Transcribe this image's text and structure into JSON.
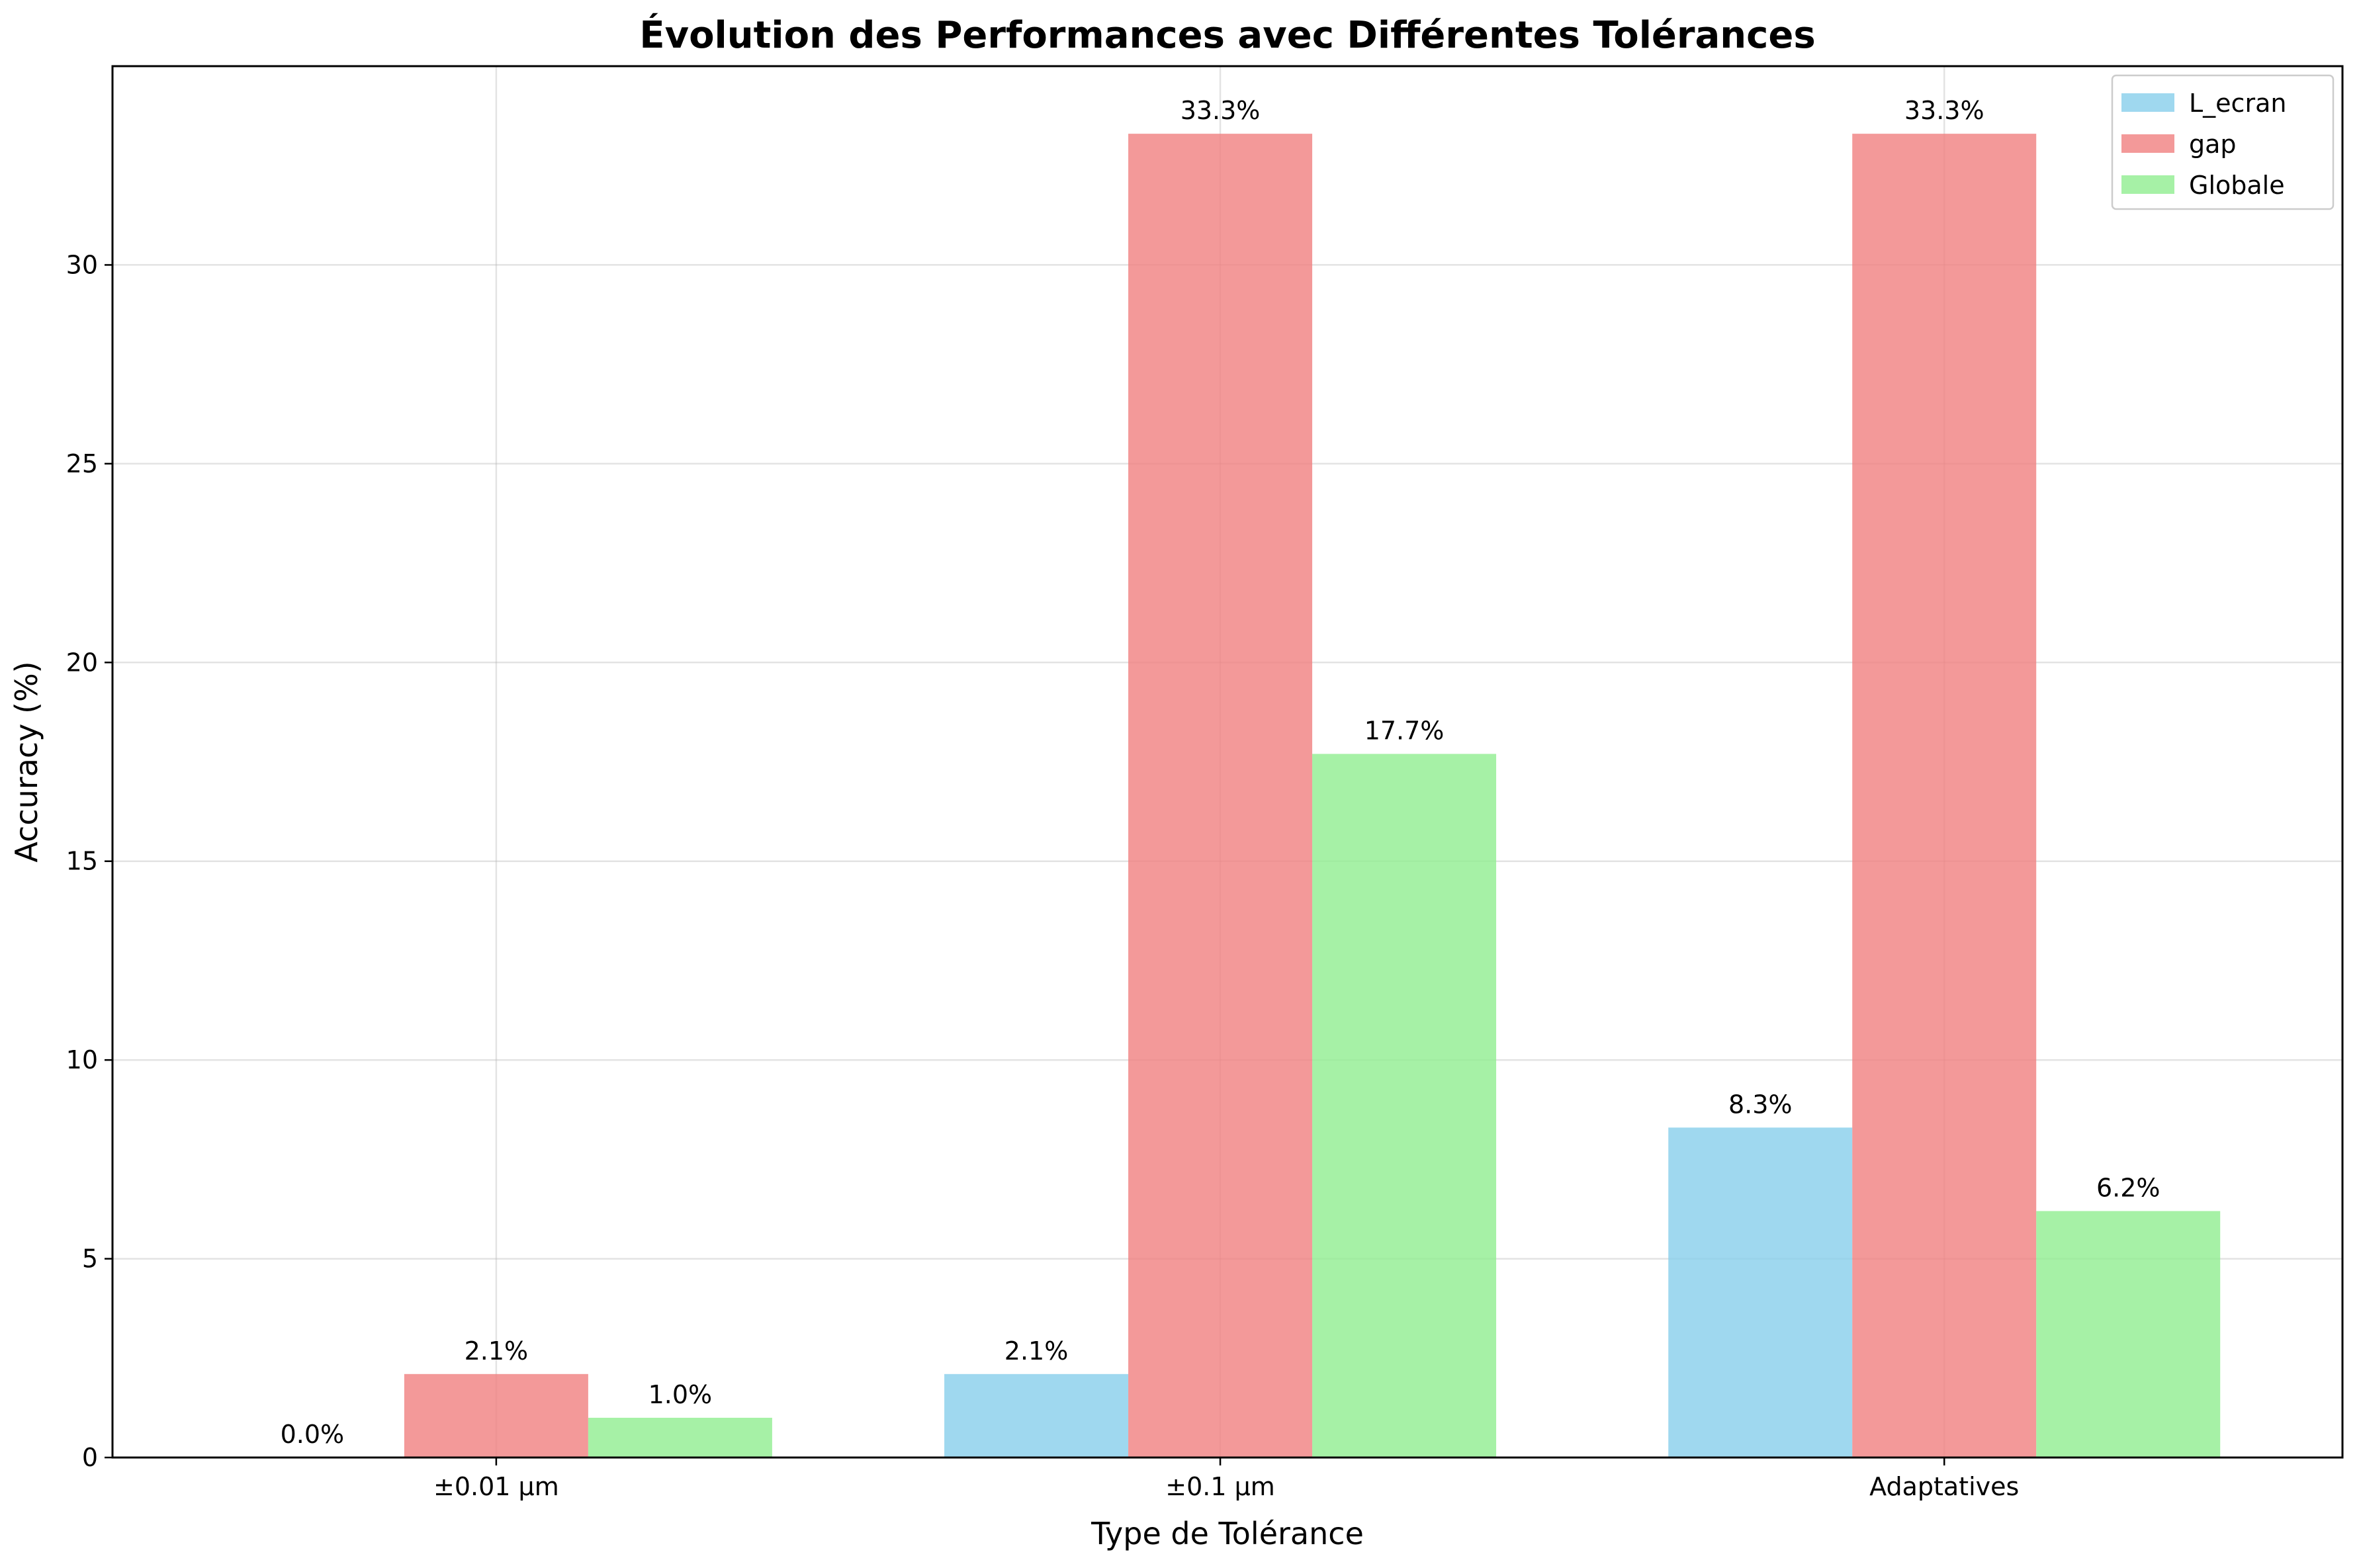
{
  "chart_data": {
    "type": "bar",
    "title": "Évolution des Performances avec Différentes Tolérances",
    "xlabel": "Type de Tolérance",
    "ylabel": "Accuracy (%)",
    "categories": [
      "±0.01 µm",
      "±0.1 µm",
      "Adaptatives"
    ],
    "series": [
      {
        "name": "L_ecran",
        "values": [
          0.0,
          2.1,
          8.3
        ],
        "labels": [
          "0.0%",
          "2.1%",
          "8.3%"
        ],
        "color": "#87ceeb"
      },
      {
        "name": "gap",
        "values": [
          2.1,
          33.3,
          33.3
        ],
        "labels": [
          "2.1%",
          "33.3%",
          "33.3%"
        ],
        "color": "#f08080"
      },
      {
        "name": "Globale",
        "values": [
          1.0,
          17.7,
          6.2
        ],
        "labels": [
          "1.0%",
          "17.7%",
          "6.2%"
        ],
        "color": "#90ee90"
      }
    ],
    "ylim": [
      0,
      35
    ],
    "yticks": [
      0,
      5,
      10,
      15,
      20,
      25,
      30
    ],
    "grid": true,
    "legend_position": "top-right"
  }
}
